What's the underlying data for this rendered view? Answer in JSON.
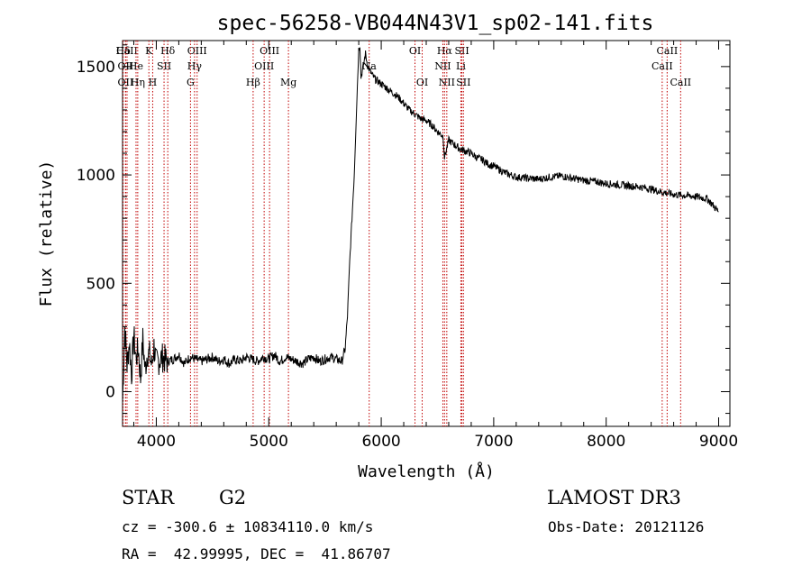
{
  "chart_data": {
    "type": "line",
    "title": "spec-56258-VB044N43V1_sp02-141.fits",
    "xlabel": "Wavelength (Å)",
    "ylabel": "Flux (relative)",
    "xlim": [
      3700,
      9100
    ],
    "ylim": [
      -160,
      1620
    ],
    "x_ticks": [
      4000,
      5000,
      6000,
      7000,
      8000,
      9000
    ],
    "y_ticks": [
      0,
      500,
      1000,
      1500
    ],
    "grid": false,
    "series": [
      {
        "x": [
          3700,
          3720,
          3740,
          3760,
          3780,
          3800,
          3820,
          3840,
          3860,
          3880,
          3900,
          3920,
          3940,
          3960,
          3980,
          4000,
          4050,
          4100,
          4150,
          4200,
          4250,
          4300,
          4350,
          4400,
          4450,
          4500,
          4550,
          4600,
          4650,
          4700,
          4750,
          4800,
          4850,
          4900,
          4950,
          5000,
          5050,
          5100,
          5150,
          5200,
          5250,
          5300,
          5350,
          5400,
          5450,
          5500,
          5550,
          5600,
          5650,
          5680,
          5700,
          5720,
          5740,
          5760,
          5780,
          5800,
          5810,
          5820,
          5840,
          5860,
          5880,
          5900,
          5920,
          5950,
          6000,
          6050,
          6100,
          6150,
          6200,
          6250,
          6300,
          6350,
          6400,
          6450,
          6500,
          6550,
          6563,
          6600,
          6650,
          6700,
          6750,
          6800,
          6850,
          6900,
          6950,
          7000,
          7100,
          7200,
          7300,
          7400,
          7500,
          7600,
          7700,
          7800,
          7900,
          8000,
          8100,
          8200,
          8300,
          8400,
          8500,
          8600,
          8700,
          8800,
          8900,
          8950,
          9000
        ],
        "y": [
          -50,
          300,
          120,
          230,
          80,
          260,
          150,
          200,
          60,
          240,
          100,
          180,
          170,
          120,
          210,
          130,
          160,
          140,
          150,
          170,
          130,
          160,
          150,
          140,
          150,
          160,
          140,
          150,
          130,
          150,
          140,
          160,
          150,
          140,
          160,
          150,
          170,
          140,
          160,
          150,
          140,
          130,
          150,
          160,
          140,
          150,
          160,
          150,
          140,
          200,
          350,
          600,
          800,
          1000,
          1300,
          1580,
          1600,
          1450,
          1500,
          1560,
          1500,
          1480,
          1460,
          1440,
          1420,
          1400,
          1380,
          1360,
          1330,
          1300,
          1280,
          1260,
          1250,
          1230,
          1200,
          1180,
          1080,
          1160,
          1140,
          1120,
          1110,
          1100,
          1080,
          1070,
          1050,
          1040,
          1010,
          990,
          985,
          980,
          990,
          995,
          985,
          975,
          970,
          960,
          955,
          950,
          945,
          935,
          920,
          910,
          905,
          900,
          890,
          860,
          830
        ]
      }
    ],
    "line_color": "#000000",
    "marker_color": "#c00000",
    "line_markers": [
      {
        "label": "Hδ",
        "x": 3705,
        "row": 0
      },
      {
        "label": "CaII",
        "x": 3740,
        "row": 0
      },
      {
        "label": "K",
        "x": 3934,
        "row": 0
      },
      {
        "label": "Hδ",
        "x": 4102,
        "row": 0
      },
      {
        "label": "OIII",
        "x": 4363,
        "row": 0
      },
      {
        "label": "OIII",
        "x": 5007,
        "row": 0
      },
      {
        "label": "OI",
        "x": 6300,
        "row": 0
      },
      {
        "label": "Hα",
        "x": 6563,
        "row": 0
      },
      {
        "label": "SII",
        "x": 6717,
        "row": 0
      },
      {
        "label": "CaII",
        "x": 8542,
        "row": 0
      },
      {
        "label": "OII",
        "x": 3727,
        "row": 1
      },
      {
        "label": "He",
        "x": 3820,
        "row": 1
      },
      {
        "label": "SII",
        "x": 4069,
        "row": 1
      },
      {
        "label": "Hγ",
        "x": 4340,
        "row": 1
      },
      {
        "label": "OIII",
        "x": 4959,
        "row": 1
      },
      {
        "label": "Na",
        "x": 5893,
        "row": 1
      },
      {
        "label": "NII",
        "x": 6548,
        "row": 1
      },
      {
        "label": "Li",
        "x": 6708,
        "row": 1
      },
      {
        "label": "CaII",
        "x": 8498,
        "row": 1
      },
      {
        "label": "OII",
        "x": 3727,
        "row": 2
      },
      {
        "label": "Hη",
        "x": 3835,
        "row": 2
      },
      {
        "label": "H",
        "x": 3968,
        "row": 2
      },
      {
        "label": "G",
        "x": 4304,
        "row": 2
      },
      {
        "label": "Hβ",
        "x": 4861,
        "row": 2
      },
      {
        "label": "Mg",
        "x": 5175,
        "row": 2
      },
      {
        "label": "OI",
        "x": 6364,
        "row": 2
      },
      {
        "label": "NII",
        "x": 6583,
        "row": 2
      },
      {
        "label": "SII",
        "x": 6731,
        "row": 2
      },
      {
        "label": "CaII",
        "x": 8662,
        "row": 2
      }
    ]
  },
  "info": {
    "object_class": "STAR",
    "subclass": "G2",
    "survey": "LAMOST DR3",
    "cz": "cz = -300.6 ± 10834110.0 km/s",
    "obs_date": "Obs-Date: 20121126",
    "coords": "RA =  42.99995, DEC =  41.86707"
  }
}
